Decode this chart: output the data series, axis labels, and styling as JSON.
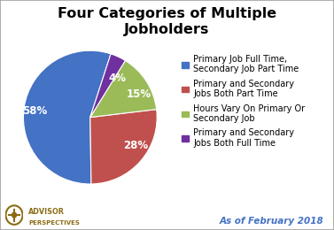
{
  "title": "Four Categories of Multiple\nJobholders",
  "values": [
    58,
    28,
    15,
    4
  ],
  "pct_labels": [
    "58%",
    "28%",
    "15%",
    "4%"
  ],
  "colors": [
    "#4472C4",
    "#C0504D",
    "#9BBB59",
    "#7030A0"
  ],
  "legend_labels": [
    "Primary Job Full Time,\nSecondary Job Part Time",
    "Primary and Secondary\nJobs Both Part Time",
    "Hours Vary On Primary Or\nSecondary Job",
    "Primary and Secondary\nJobs Both Full Time"
  ],
  "startangle": 72,
  "subtitle": "As of February 2018",
  "subtitle_color": "#4472C4",
  "title_fontsize": 11.5,
  "label_fontsize": 8.5,
  "legend_fontsize": 7.0,
  "background_color": "#ffffff",
  "border_color": "#a0a0a0",
  "logo_color": "#8B6C14"
}
